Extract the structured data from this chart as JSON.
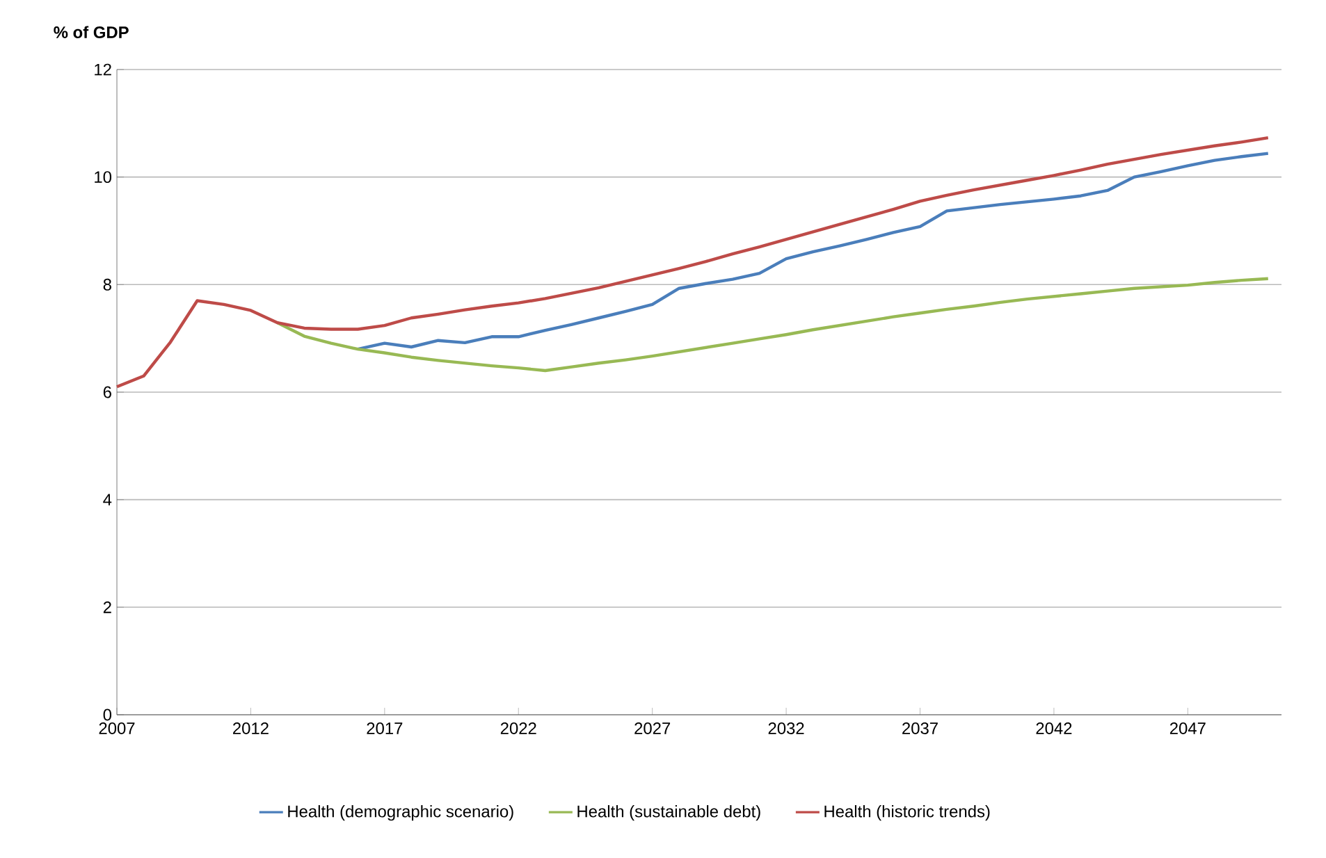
{
  "chart_data": {
    "type": "line",
    "ylabel": "% of GDP",
    "series": [
      {
        "name": "Health (demographic scenario)",
        "color": "#4a7ebb",
        "x": [
          2016,
          2017,
          2018,
          2019,
          2020,
          2021,
          2022,
          2023,
          2024,
          2025,
          2026,
          2027,
          2028,
          2029,
          2030,
          2031,
          2032,
          2033,
          2034,
          2035,
          2036,
          2037,
          2038,
          2039,
          2040,
          2041,
          2042,
          2043,
          2044,
          2045,
          2046,
          2047,
          2048,
          2049,
          2050
        ],
        "values": [
          6.8,
          6.91,
          6.84,
          6.96,
          6.92,
          7.03,
          7.03,
          7.15,
          7.26,
          7.38,
          7.5,
          7.63,
          7.93,
          8.02,
          8.1,
          8.21,
          8.48,
          8.61,
          8.72,
          8.84,
          8.97,
          9.08,
          9.37,
          9.43,
          9.49,
          9.54,
          9.59,
          9.65,
          9.75,
          10.0,
          10.1,
          10.21,
          10.31,
          10.38,
          10.44
        ]
      },
      {
        "name": "Health (sustainable debt)",
        "color": "#98b954",
        "x": [
          2013,
          2014,
          2015,
          2016,
          2017,
          2018,
          2019,
          2020,
          2021,
          2022,
          2023,
          2024,
          2025,
          2026,
          2027,
          2028,
          2029,
          2030,
          2031,
          2032,
          2033,
          2034,
          2035,
          2036,
          2037,
          2038,
          2039,
          2040,
          2041,
          2042,
          2043,
          2044,
          2045,
          2046,
          2047,
          2048,
          2049,
          2050
        ],
        "values": [
          7.29,
          7.04,
          6.91,
          6.8,
          6.73,
          6.65,
          6.59,
          6.54,
          6.49,
          6.45,
          6.4,
          6.47,
          6.54,
          6.6,
          6.67,
          6.75,
          6.83,
          6.91,
          6.99,
          7.07,
          7.16,
          7.24,
          7.32,
          7.4,
          7.47,
          7.54,
          7.6,
          7.67,
          7.73,
          7.78,
          7.83,
          7.88,
          7.93,
          7.96,
          7.99,
          8.04,
          8.08,
          8.11
        ]
      },
      {
        "name": "Health (historic trends)",
        "color": "#be4b48",
        "x": [
          2007,
          2008,
          2009,
          2010,
          2011,
          2012,
          2013,
          2014,
          2015,
          2016,
          2017,
          2018,
          2019,
          2020,
          2021,
          2022,
          2023,
          2024,
          2025,
          2026,
          2027,
          2028,
          2029,
          2030,
          2031,
          2032,
          2033,
          2034,
          2035,
          2036,
          2037,
          2038,
          2039,
          2040,
          2041,
          2042,
          2043,
          2044,
          2045,
          2046,
          2047,
          2048,
          2049,
          2050
        ],
        "values": [
          6.1,
          6.3,
          6.93,
          7.7,
          7.63,
          7.52,
          7.29,
          7.19,
          7.17,
          7.17,
          7.24,
          7.38,
          7.45,
          7.53,
          7.6,
          7.66,
          7.74,
          7.84,
          7.94,
          8.06,
          8.18,
          8.3,
          8.43,
          8.57,
          8.7,
          8.84,
          8.98,
          9.12,
          9.26,
          9.4,
          9.55,
          9.66,
          9.76,
          9.85,
          9.94,
          10.03,
          10.13,
          10.24,
          10.33,
          10.42,
          10.5,
          10.58,
          10.65,
          10.73
        ]
      }
    ],
    "xlim": [
      2007,
      2050.5
    ],
    "ylim": [
      0,
      12
    ],
    "xticks": [
      2007,
      2012,
      2017,
      2022,
      2027,
      2032,
      2037,
      2042,
      2047
    ],
    "yticks": [
      0,
      2,
      4,
      6,
      8,
      10,
      12
    ],
    "grid": "y",
    "legend": "bottom",
    "marker": "none",
    "line_style": "solid"
  }
}
